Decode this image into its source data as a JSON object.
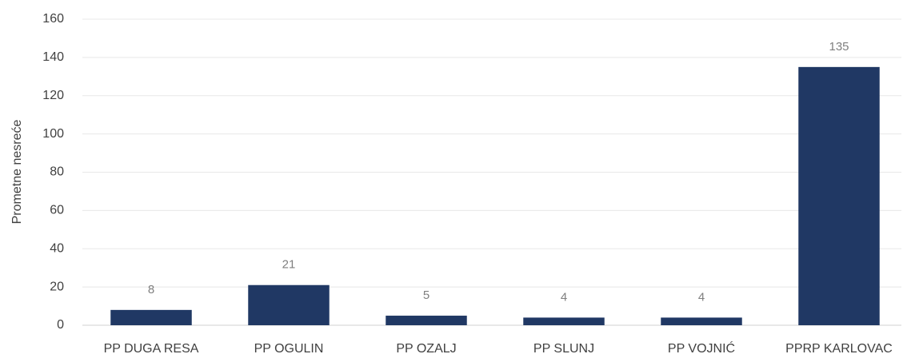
{
  "chart_data": {
    "type": "bar",
    "y_label": "Prometne nesreće",
    "categories": [
      "PP DUGA RESA",
      "PP OGULIN",
      "PP OZALJ",
      "PP SLUNJ",
      "PP VOJNIĆ",
      "PPRP KARLOVAC"
    ],
    "values": [
      8,
      21,
      5,
      4,
      4,
      135
    ],
    "color": "#203864",
    "ylim": [
      0,
      160
    ],
    "yticks": [
      0,
      20,
      40,
      60,
      80,
      100,
      120,
      140,
      160
    ],
    "grid": true,
    "data_labels": true
  }
}
